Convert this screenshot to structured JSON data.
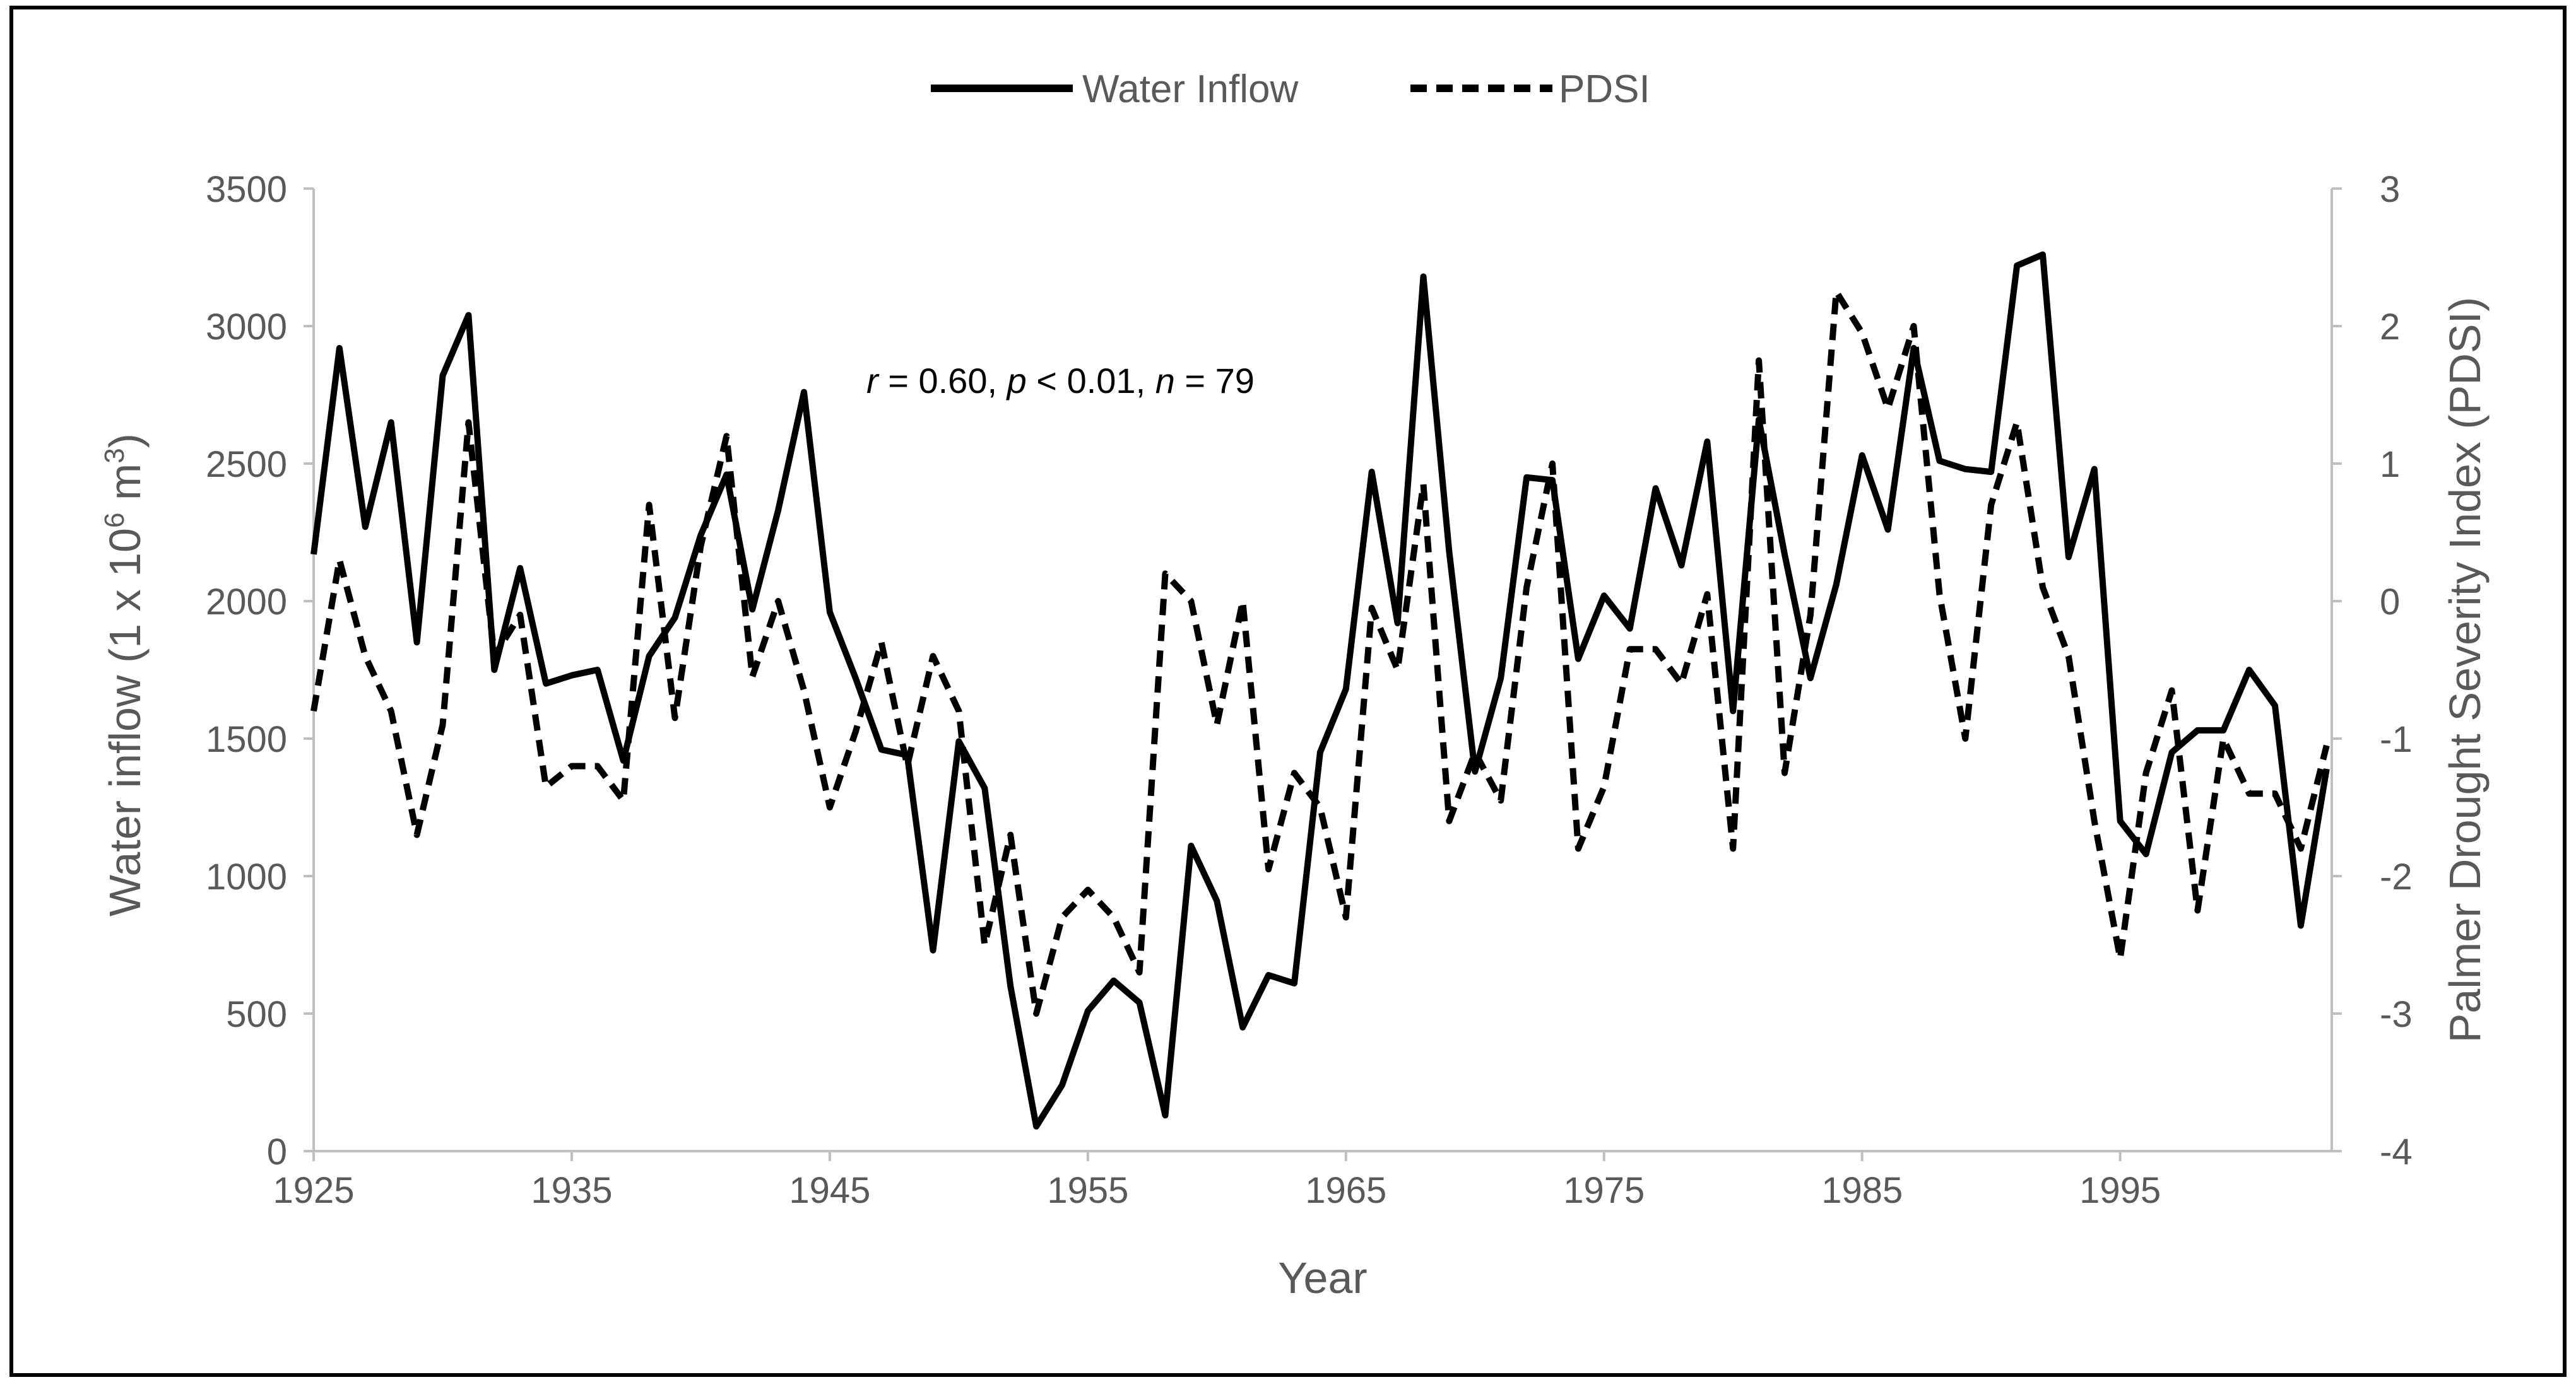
{
  "colors": {
    "axis": "#bfbfbf",
    "text": "#595959",
    "series": "#000000",
    "border": "#000000",
    "background": "#ffffff"
  },
  "chart_data": {
    "type": "line",
    "xlabel": "Year",
    "ylabel_left": "Water inflow (1 x 10",
    "ylabel_left_sup": "6",
    "ylabel_left_unit": " m",
    "ylabel_left_unit_sup": "3",
    "ylabel_left_close": ")",
    "ylabel_right": "Palmer Drought Severity Index (PDSI)",
    "legend_position": "top-center",
    "annotation": {
      "r_label": "r",
      "r_value": " = 0.60, ",
      "p_label": "p",
      "p_value": " < 0.01, ",
      "n_label": "n",
      "n_value": " = 79"
    },
    "xlim": [
      1925,
      2003.2
    ],
    "xticks": [
      1925,
      1935,
      1945,
      1955,
      1965,
      1975,
      1985,
      1995
    ],
    "ylim_left": [
      0,
      3500
    ],
    "yticks_left": [
      0,
      500,
      1000,
      1500,
      2000,
      2500,
      3000,
      3500
    ],
    "ylim_right": [
      -4,
      3
    ],
    "yticks_right": [
      -4,
      -3,
      -2,
      -1,
      0,
      1,
      2,
      3
    ],
    "x": [
      1925,
      1926,
      1927,
      1928,
      1929,
      1930,
      1931,
      1932,
      1933,
      1934,
      1935,
      1936,
      1937,
      1938,
      1939,
      1940,
      1941,
      1942,
      1943,
      1944,
      1945,
      1946,
      1947,
      1948,
      1949,
      1950,
      1951,
      1952,
      1953,
      1954,
      1955,
      1956,
      1957,
      1958,
      1959,
      1960,
      1961,
      1962,
      1963,
      1964,
      1965,
      1966,
      1967,
      1968,
      1969,
      1970,
      1971,
      1972,
      1973,
      1974,
      1975,
      1976,
      1977,
      1978,
      1979,
      1980,
      1981,
      1982,
      1983,
      1984,
      1985,
      1986,
      1987,
      1988,
      1989,
      1990,
      1991,
      1992,
      1993,
      1994,
      1995,
      1996,
      1997,
      1998,
      1999,
      2000,
      2001,
      2002,
      2003
    ],
    "series": [
      {
        "name": "Water Inflow",
        "axis": "left",
        "style": "solid",
        "values": [
          2170,
          2920,
          2270,
          2650,
          1850,
          2820,
          3040,
          1750,
          2120,
          1700,
          1730,
          1750,
          1420,
          1800,
          1940,
          2240,
          2460,
          1970,
          2330,
          2760,
          1960,
          1720,
          1460,
          1440,
          730,
          1490,
          1320,
          600,
          90,
          240,
          510,
          620,
          540,
          130,
          1110,
          910,
          450,
          640,
          610,
          1450,
          1680,
          2470,
          1920,
          3180,
          2180,
          1380,
          1720,
          2450,
          2440,
          1790,
          2020,
          1900,
          2410,
          2130,
          2580,
          1600,
          2660,
          2170,
          1720,
          2060,
          2530,
          2260,
          2920,
          2510,
          2480,
          2470,
          3220,
          3260,
          2160,
          2480,
          1200,
          1080,
          1450,
          1530,
          1530,
          1750,
          1620,
          820,
          1390
        ]
      },
      {
        "name": "PDSI",
        "axis": "right",
        "style": "dashed",
        "values": [
          -0.8,
          0.3,
          -0.4,
          -0.8,
          -1.7,
          -0.9,
          1.3,
          -0.4,
          -0.1,
          -1.35,
          -1.2,
          -1.2,
          -1.45,
          0.7,
          -0.85,
          0.4,
          1.2,
          -0.55,
          0.0,
          -0.65,
          -1.5,
          -0.95,
          -0.3,
          -1.2,
          -0.4,
          -0.8,
          -2.5,
          -1.7,
          -3.0,
          -2.3,
          -2.1,
          -2.3,
          -2.7,
          0.2,
          0.0,
          -0.9,
          0.0,
          -1.95,
          -1.25,
          -1.5,
          -2.3,
          -0.05,
          -0.5,
          0.85,
          -1.6,
          -1.1,
          -1.45,
          0.1,
          1.0,
          -1.8,
          -1.35,
          -0.35,
          -0.35,
          -0.6,
          0.05,
          -1.8,
          1.75,
          -1.25,
          -0.1,
          2.25,
          1.95,
          1.4,
          2.0,
          0.05,
          -1.0,
          0.7,
          1.3,
          0.1,
          -0.4,
          -1.6,
          -2.6,
          -1.25,
          -0.65,
          -2.25,
          -1.0,
          -1.4,
          -1.4,
          -1.8,
          -1.05
        ]
      }
    ]
  }
}
